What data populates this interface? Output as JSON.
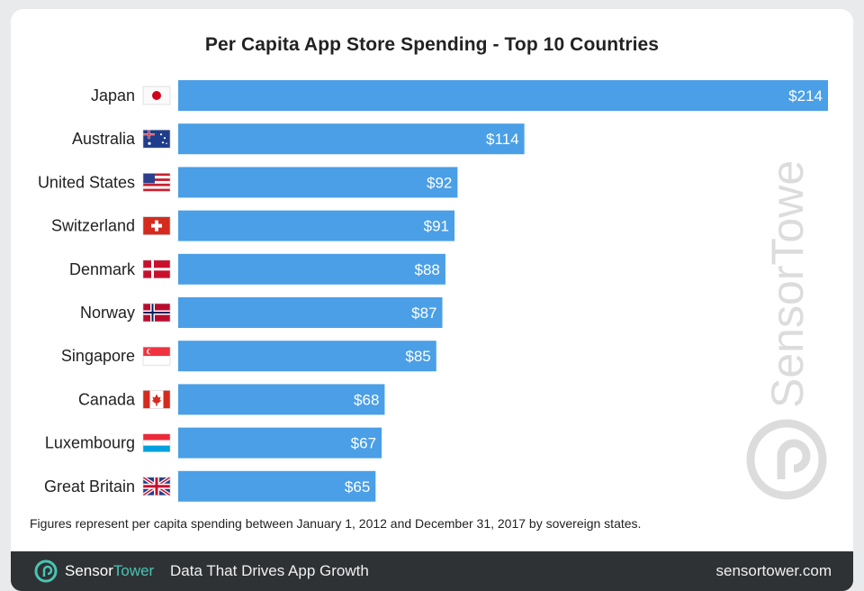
{
  "chart_data": {
    "type": "bar",
    "orientation": "horizontal",
    "title": "Per Capita App Store Spending - Top 10 Countries",
    "categories": [
      "Japan",
      "Australia",
      "United States",
      "Switzerland",
      "Denmark",
      "Norway",
      "Singapore",
      "Canada",
      "Luxembourg",
      "Great Britain"
    ],
    "values": [
      214,
      114,
      92,
      91,
      88,
      87,
      85,
      68,
      67,
      65
    ],
    "value_labels": [
      "$214",
      "$114",
      "$92",
      "$91",
      "$88",
      "$87",
      "$85",
      "$68",
      "$67",
      "$65"
    ],
    "bar_color": "#4a9fe6",
    "xlim": [
      0,
      214
    ],
    "grid": false,
    "legend": "none"
  },
  "footnote": "Figures represent per capita spending between January 1, 2012 and December 31, 2017 by sovereign states.",
  "watermark": "SensorTower",
  "footer": {
    "brand_part1": "Sensor",
    "brand_part2": "Tower",
    "tagline": "Data That Drives App Growth",
    "url": "sensortower.com"
  },
  "flags": [
    "japan-flag",
    "australia-flag",
    "us-flag",
    "switzerland-flag",
    "denmark-flag",
    "norway-flag",
    "singapore-flag",
    "canada-flag",
    "luxembourg-flag",
    "uk-flag"
  ]
}
